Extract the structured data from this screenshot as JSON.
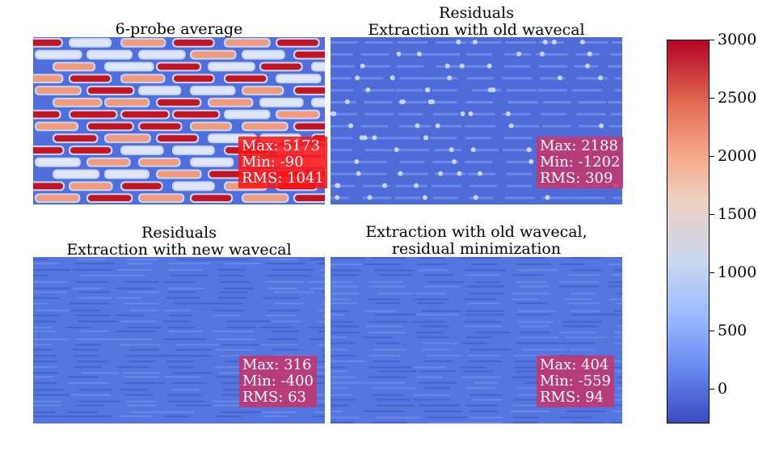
{
  "chart_data": [
    {
      "type": "heatmap",
      "title": "6-probe average",
      "stats": {
        "max_label": "Max: 5173",
        "min_label": "Min: -90",
        "rms_label": "RMS: 1041"
      },
      "max": 5173,
      "min": -90,
      "rms": 1041,
      "stats_color": "#ff1a1a"
    },
    {
      "type": "heatmap",
      "title_line1": "Residuals",
      "title_line2": "Extraction with old wavecal",
      "stats": {
        "max_label": "Max: 2188",
        "min_label": "Min: -1202",
        "rms_label": "RMS: 309"
      },
      "max": 2188,
      "min": -1202,
      "rms": 309,
      "stats_color": "#c8326a"
    },
    {
      "type": "heatmap",
      "title_line1": "Residuals",
      "title_line2": "Extraction with new wavecal",
      "stats": {
        "max_label": "Max: 316",
        "min_label": "Min: -400",
        "rms_label": "RMS: 63"
      },
      "max": 316,
      "min": -400,
      "rms": 63,
      "stats_color": "#c8326a"
    },
    {
      "type": "heatmap",
      "title_line1": "Extraction with old wavecal,",
      "title_line2": "residual minimization",
      "stats": {
        "max_label": "Max: 404",
        "min_label": "Min: -559",
        "rms_label": "RMS: 94"
      },
      "max": 404,
      "min": -559,
      "rms": 94,
      "stats_color": "#c8326a"
    }
  ],
  "colorbar": {
    "colormap": "coolwarm",
    "vmin": -300,
    "vmax": 3000,
    "ticks": [
      "0",
      "500",
      "1000",
      "1500",
      "2000",
      "2500",
      "3000"
    ],
    "tick_values": [
      0,
      500,
      1000,
      1500,
      2000,
      2500,
      3000
    ]
  },
  "colors": {
    "background_blue": "#5a78e0",
    "hot_red": "#b40426",
    "white_band": "#dde4f4"
  }
}
